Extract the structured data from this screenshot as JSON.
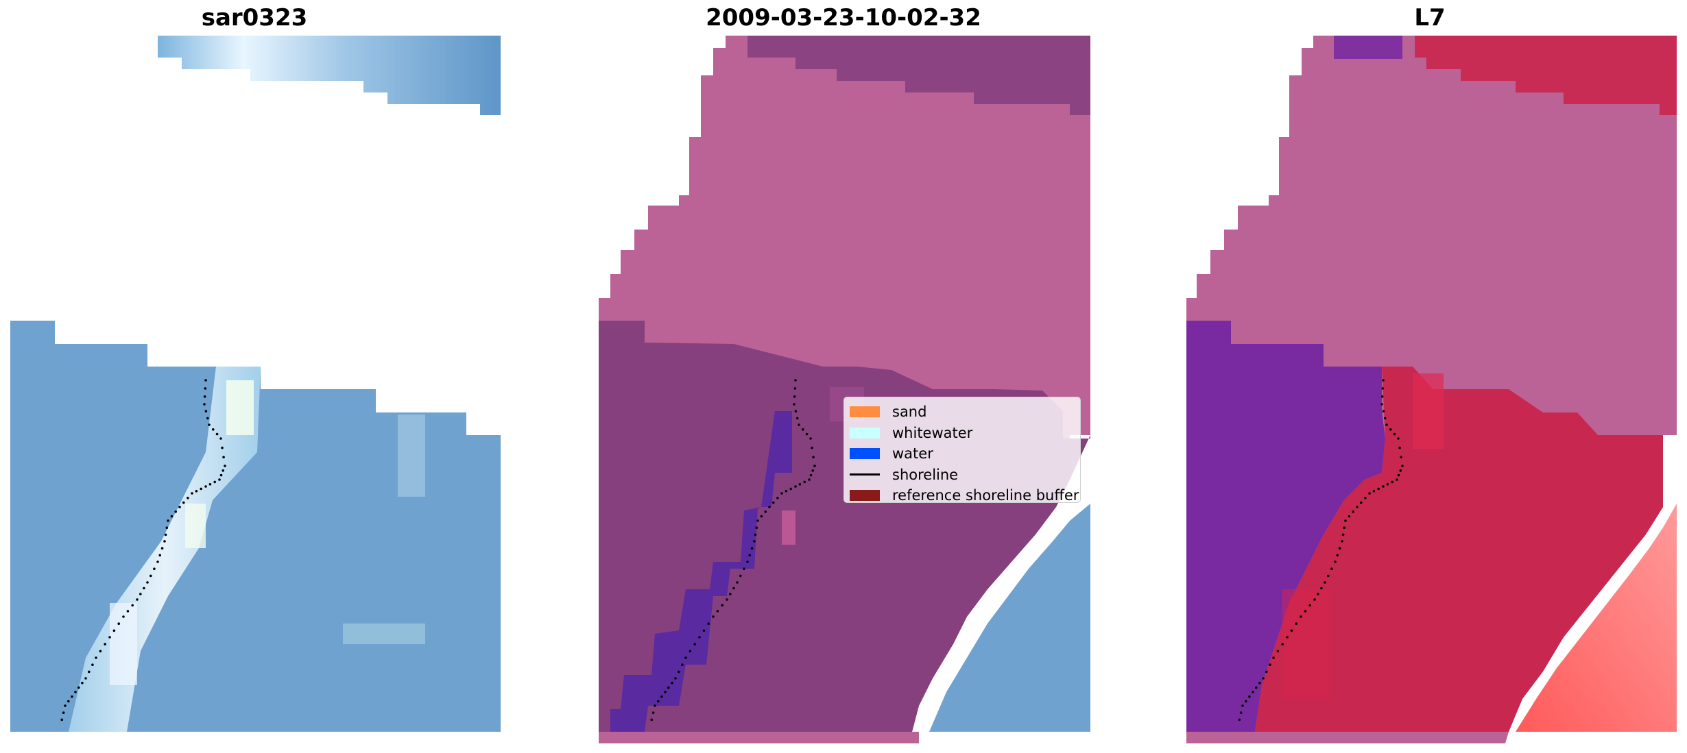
{
  "panels": [
    {
      "title": "sar0323",
      "kind": "rgb"
    },
    {
      "title": "2009-03-23-10-02-32",
      "kind": "classified"
    },
    {
      "title": "L7",
      "kind": "index"
    }
  ],
  "legend": {
    "items": [
      {
        "label": "sand",
        "color": "#ff8c3f",
        "type": "patch"
      },
      {
        "label": "whitewater",
        "color": "#c8ffff",
        "type": "patch"
      },
      {
        "label": "water",
        "color": "#0050ff",
        "type": "patch"
      },
      {
        "label": "shoreline",
        "color": "#000000",
        "type": "line"
      },
      {
        "label": "reference shoreline buffer",
        "color": "#8b1a1a",
        "type": "patch"
      }
    ]
  },
  "colors": {
    "rgb_water": "#6fa2cf",
    "buffer_pink": "#bb6396",
    "classified_dark": "#86407e",
    "water_purple": "#5a2aa0",
    "index_purple": "#7a2aa0",
    "index_red": "#c8284f",
    "index_light_red": "#ff6a6a",
    "whitewater_light": "#eef9ff"
  }
}
